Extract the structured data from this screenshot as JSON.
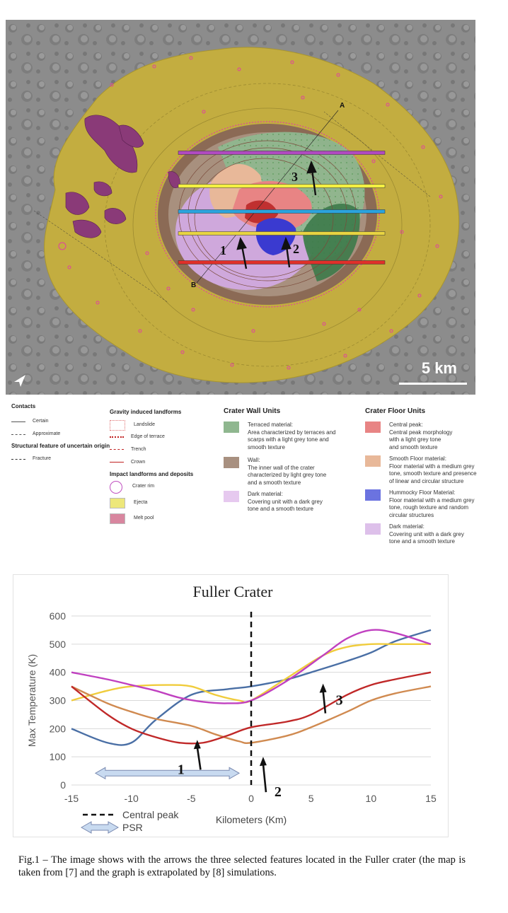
{
  "map": {
    "scale_label": "5 km",
    "label_a": "A",
    "label_b": "B",
    "arrow_labels": [
      "1",
      "2",
      "3"
    ],
    "profile_line_colors": [
      "#b04ac0",
      "#f4f042",
      "#2ba3dd",
      "#e8d441",
      "#e0302a"
    ]
  },
  "legend": {
    "contacts": {
      "title": "Contacts",
      "items": [
        "Certain",
        "Approximate"
      ]
    },
    "structural": {
      "title": "Structural feature of uncertain origin",
      "items": [
        "Fracture"
      ]
    },
    "gravity": {
      "title": "Gravity induced landforms",
      "items": [
        "Landslide",
        "Edge of terrace",
        "Trench",
        "Crown"
      ]
    },
    "impact": {
      "title": "Impact landforms and deposits",
      "items": [
        "Crater rim",
        "Ejecta",
        "Melt pool"
      ]
    },
    "wall_units": {
      "title": "Crater Wall Units",
      "items": [
        {
          "text": "Terraced material:\nArea characterized by terraces and\nscarps with a light grey tone and\nsmooth texture",
          "color": "#8fb78f"
        },
        {
          "text": "Wall:\nThe inner wall of the crater\ncharacterized by light grey tone\nand a smooth texture",
          "color": "#a89080"
        },
        {
          "text": "Dark material:\nCovering unit with a dark grey\ntone and a smooth texture",
          "color": "#d9b3e6"
        }
      ]
    },
    "floor_units": {
      "title": "Crater Floor Units",
      "items": [
        {
          "text": "Central peak:\nCentral peak morphology\nwith a light grey tone\nand smooth texture",
          "color": "#e88484"
        },
        {
          "text": "Smooth Floor material:\nFloor material with a medium grey\ntone, smooth texture and presence\nof linear and circular structure",
          "color": "#e8b899"
        },
        {
          "text": "Hummocky Floor Material:\nFloor material with a medium grey\ntone, rough texture and random\ncircular structures",
          "color": "#6b73e0"
        },
        {
          "text": "Dark material:\nCovering unit with a dark grey\ntone and a smooth texture",
          "color": "#ddc0ea"
        }
      ]
    }
  },
  "chart_data": {
    "type": "line",
    "title": "Fuller Crater",
    "xlabel": "Kilometers (Km)",
    "ylabel": "Max Temperature (K)",
    "xlim": [
      -15,
      15
    ],
    "ylim": [
      0,
      600
    ],
    "x_ticks": [
      "-15",
      "-10",
      "-5",
      "0",
      "5",
      "10",
      "15"
    ],
    "y_ticks": [
      "0",
      "100",
      "200",
      "300",
      "400",
      "500",
      "600"
    ],
    "series": [
      {
        "color": "#4a6fa5",
        "x": [
          -15,
          -12,
          -10,
          -8,
          -5,
          -2,
          0,
          3,
          5,
          8,
          10,
          12,
          15
        ],
        "y": [
          200,
          150,
          150,
          230,
          320,
          340,
          350,
          375,
          400,
          440,
          470,
          510,
          550
        ]
      },
      {
        "color": "#f0cc3c",
        "x": [
          -15,
          -12,
          -10,
          -7,
          -5,
          -3,
          -1,
          0,
          3,
          6,
          8,
          10,
          12,
          15
        ],
        "y": [
          300,
          335,
          350,
          355,
          350,
          320,
          300,
          300,
          380,
          460,
          490,
          500,
          500,
          500
        ]
      },
      {
        "color": "#c040c0",
        "x": [
          -15,
          -12,
          -10,
          -8,
          -6,
          -4,
          -2,
          0,
          3,
          6,
          8,
          10,
          12,
          15
        ],
        "y": [
          400,
          375,
          355,
          335,
          310,
          295,
          290,
          300,
          370,
          460,
          520,
          550,
          540,
          500
        ]
      },
      {
        "color": "#d08a50",
        "x": [
          -15,
          -12,
          -10,
          -8,
          -5,
          -3,
          -1,
          0,
          3,
          5,
          8,
          10,
          12,
          15
        ],
        "y": [
          350,
          290,
          260,
          235,
          210,
          180,
          155,
          150,
          175,
          205,
          260,
          300,
          325,
          350
        ]
      },
      {
        "color": "#c02828",
        "x": [
          -15,
          -12,
          -10,
          -8,
          -6,
          -4,
          -2,
          0,
          3,
          5,
          8,
          10,
          12,
          15
        ],
        "y": [
          350,
          250,
          200,
          170,
          150,
          150,
          175,
          205,
          225,
          250,
          320,
          355,
          375,
          400
        ]
      }
    ],
    "central_peak_x": 0,
    "psr_range": [
      -13,
      -1
    ],
    "legend": [
      {
        "label": "Central peak",
        "style": "dashed-line"
      },
      {
        "label": "PSR",
        "style": "double-arrow"
      }
    ],
    "annotations": [
      {
        "label": "1",
        "x": -4.5,
        "y": 160
      },
      {
        "label": "2",
        "x": 1.0,
        "y": 100
      },
      {
        "label": "3",
        "x": 6.0,
        "y": 360
      }
    ]
  },
  "caption": "Fig.1 – The image shows with the arrows the three selected features located in the Fuller crater (the map is taken from [7] and the graph is extrapolated by [8] simulations."
}
